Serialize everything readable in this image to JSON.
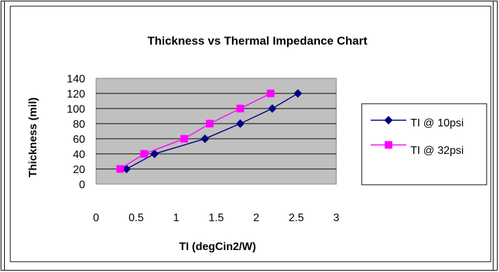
{
  "chart_data": {
    "type": "line",
    "title": "Thickness vs Thermal Impedance Chart",
    "xlabel": "TI (degCin2/W)",
    "ylabel": "Thickness (mil)",
    "xlim": [
      0,
      3
    ],
    "ylim": [
      0,
      140
    ],
    "x_ticks": [
      "0",
      "0.5",
      "1",
      "1.5",
      "2",
      "2.5",
      "3"
    ],
    "y_ticks": [
      "0",
      "20",
      "40",
      "60",
      "80",
      "100",
      "120",
      "140"
    ],
    "plot_background": "#c0c0c0",
    "grid": "horizontal",
    "legend_position": "right",
    "series": [
      {
        "name": "TI @ 10psi",
        "color": "#000080",
        "marker": "diamond",
        "x": [
          0.38,
          0.73,
          1.36,
          1.8,
          2.2,
          2.52
        ],
        "y": [
          20,
          40,
          60,
          80,
          100,
          120
        ]
      },
      {
        "name": "TI @ 32psi",
        "color": "#ff00ff",
        "marker": "square",
        "x": [
          0.3,
          0.6,
          1.1,
          1.42,
          1.8,
          2.18
        ],
        "y": [
          20,
          40,
          60,
          80,
          100,
          120
        ]
      }
    ]
  }
}
